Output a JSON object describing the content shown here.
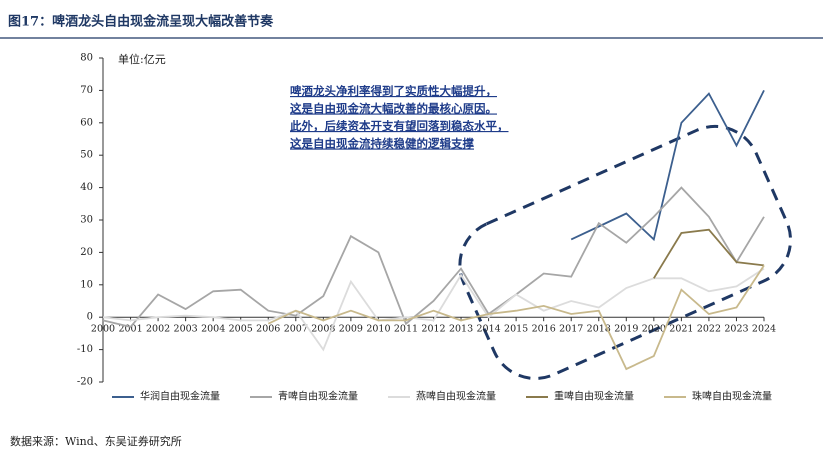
{
  "chart_data": {
    "type": "line",
    "title": "图17：啤酒龙头自由现金流呈现大幅改善节奏",
    "unit_label": "单位:亿元",
    "annotation": [
      "啤酒龙头净利率得到了实质性大幅提升，",
      "这是自由现金流大幅改善的最核心原因。",
      "此外，后续资本开支有望回落到稳态水平，",
      "这是自由现金流持续稳健的逻辑支撑"
    ],
    "source": "数据来源：Wind、东吴证券研究所",
    "categories": [
      "2000",
      "2001",
      "2002",
      "2003",
      "2004",
      "2005",
      "2006",
      "2007",
      "2008",
      "2009",
      "2010",
      "2011",
      "2012",
      "2013",
      "2014",
      "2015",
      "2016",
      "2017",
      "2018",
      "2019",
      "2020",
      "2021",
      "2022",
      "2023",
      "2024"
    ],
    "series": [
      {
        "name": "华润自由现金流量",
        "color": "#3c5f8e",
        "values": [
          null,
          null,
          null,
          null,
          null,
          null,
          null,
          null,
          null,
          null,
          null,
          null,
          null,
          null,
          null,
          null,
          null,
          24,
          28,
          32,
          24,
          60,
          69,
          53,
          70
        ]
      },
      {
        "name": "青啤自由现金流量",
        "color": "#a6a6a6",
        "values": [
          -1,
          -3,
          7,
          2.5,
          8,
          8.5,
          2,
          0.5,
          6.5,
          25,
          20,
          -2,
          5,
          15,
          1,
          7,
          13.5,
          12.5,
          29,
          23,
          31,
          40,
          31,
          17,
          31
        ]
      },
      {
        "name": "燕啤自由现金流量",
        "color": "#dcdcdc",
        "values": [
          0,
          -1,
          0,
          0.5,
          0,
          -1,
          -1,
          2,
          -10,
          11,
          -1,
          0,
          -1,
          13,
          0,
          7,
          2,
          5,
          3,
          9,
          12,
          12,
          8,
          9.5,
          15
        ]
      },
      {
        "name": "重啤自由现金流量",
        "color": "#8a7a4c",
        "values": [
          null,
          null,
          null,
          null,
          null,
          null,
          null,
          null,
          null,
          null,
          null,
          null,
          null,
          null,
          null,
          null,
          null,
          null,
          null,
          null,
          12,
          26,
          27,
          17,
          16
        ]
      },
      {
        "name": "珠啤自由现金流量",
        "color": "#c8b98c",
        "values": [
          null,
          null,
          null,
          null,
          null,
          null,
          -2,
          2,
          -1,
          2,
          -1,
          -1,
          2,
          -1,
          1,
          2,
          3.5,
          1,
          2,
          -16,
          -12,
          8.5,
          1,
          3,
          16
        ]
      }
    ],
    "ylim": [
      -20,
      80
    ],
    "yticks": [
      -20,
      -10,
      0,
      10,
      20,
      30,
      40,
      50,
      60,
      70,
      80
    ],
    "legend": "bottom"
  }
}
